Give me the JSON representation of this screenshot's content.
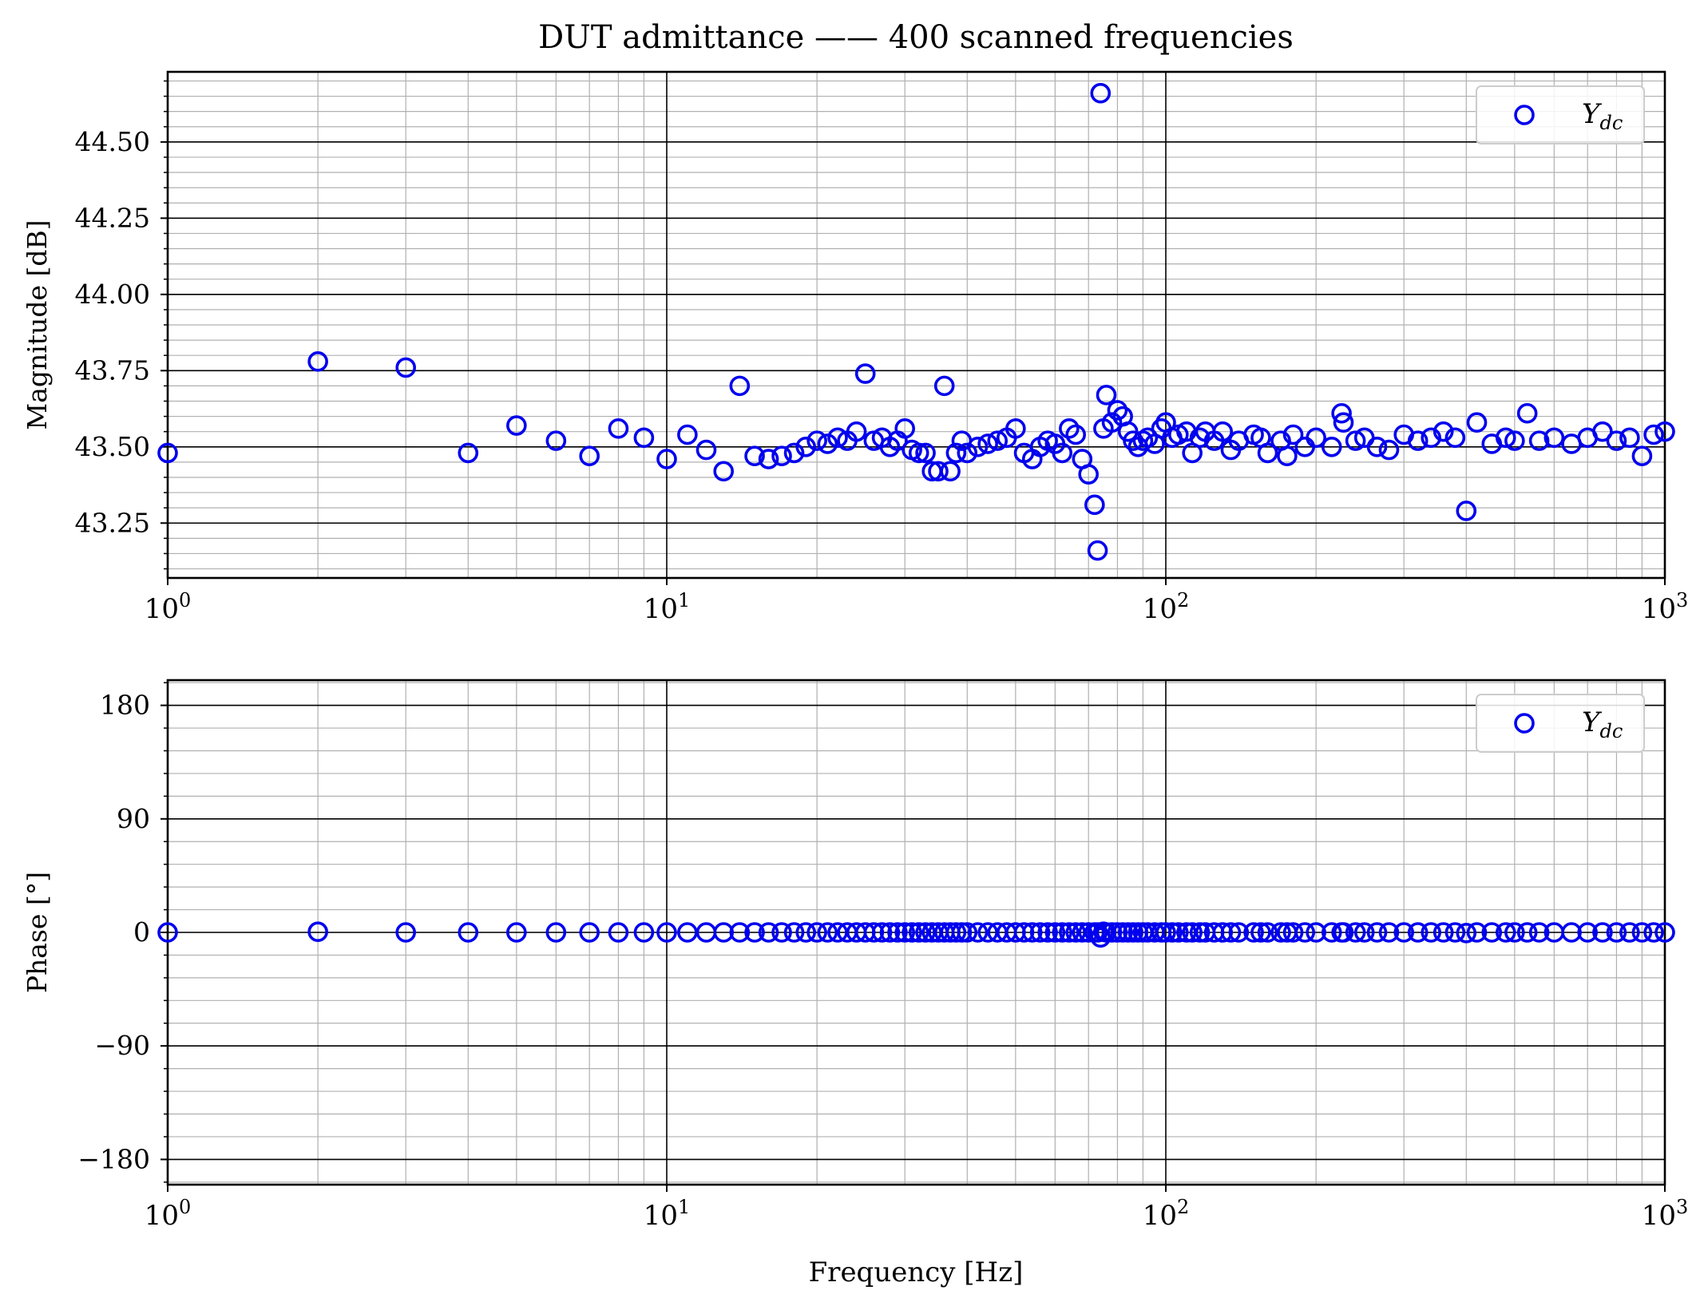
{
  "figure": {
    "title": "DUT admittance —— 400 scanned frequencies",
    "xlabel": "Frequency [Hz]"
  },
  "chart_data": [
    {
      "type": "scatter",
      "panel": "magnitude",
      "ylabel": "Magnitude [dB]",
      "xscale": "log",
      "xlim": [
        1,
        1000
      ],
      "ylim": [
        43.07,
        44.73
      ],
      "x_ticks": [
        {
          "base": "10",
          "exp": "0"
        },
        {
          "base": "10",
          "exp": "1"
        },
        {
          "base": "10",
          "exp": "2"
        },
        {
          "base": "10",
          "exp": "3"
        }
      ],
      "y_ticks": [
        "43.25",
        "43.50",
        "43.75",
        "44.00",
        "44.25",
        "44.50"
      ],
      "y_tick_values": [
        43.25,
        43.5,
        43.75,
        44.0,
        44.25,
        44.5
      ],
      "y_minor_step": 0.05,
      "grid": "major and minor",
      "legend": {
        "position": "top-right",
        "label_main": "Y",
        "label_sub": "dc"
      },
      "marker": {
        "shape": "open-circle",
        "color": "#0000ee"
      },
      "series": [
        {
          "x": [
            1,
            2,
            3,
            4,
            5,
            6,
            7,
            8,
            9,
            10,
            11,
            12,
            13,
            14,
            15,
            16,
            17,
            18,
            19,
            20,
            21,
            22,
            23,
            24,
            25,
            26,
            27,
            28,
            29,
            30,
            31,
            32,
            33,
            34,
            35,
            36,
            37,
            38,
            39,
            40,
            42,
            44,
            46,
            48,
            50,
            52,
            54,
            56,
            58,
            60,
            62,
            64,
            66,
            68,
            70,
            72,
            73,
            74,
            75,
            76,
            78,
            80,
            82,
            84,
            86,
            88,
            90,
            92,
            95,
            98,
            100,
            103,
            106,
            110,
            113,
            117,
            120,
            125,
            130,
            135,
            140,
            150,
            155,
            160,
            170,
            175,
            180,
            190,
            200,
            215,
            225,
            227,
            240,
            250,
            265,
            280,
            300,
            320,
            340,
            360,
            380,
            400,
            420,
            450,
            480,
            500,
            530,
            560,
            600,
            650,
            700,
            750,
            800,
            850,
            900,
            950,
            1000
          ],
          "y": [
            43.48,
            43.78,
            43.76,
            43.48,
            43.57,
            43.52,
            43.47,
            43.56,
            43.53,
            43.46,
            43.54,
            43.49,
            43.42,
            43.7,
            43.47,
            43.46,
            43.47,
            43.48,
            43.5,
            43.52,
            43.51,
            43.53,
            43.52,
            43.55,
            43.74,
            43.52,
            43.53,
            43.5,
            43.52,
            43.56,
            43.49,
            43.48,
            43.48,
            43.42,
            43.42,
            43.7,
            43.42,
            43.48,
            43.52,
            43.48,
            43.5,
            43.51,
            43.52,
            43.53,
            43.56,
            43.48,
            43.46,
            43.5,
            43.52,
            43.51,
            43.48,
            43.56,
            43.54,
            43.46,
            43.41,
            43.31,
            43.16,
            44.66,
            43.56,
            43.67,
            43.58,
            43.62,
            43.6,
            43.55,
            43.52,
            43.5,
            43.52,
            43.53,
            43.51,
            43.56,
            43.58,
            43.53,
            43.54,
            43.55,
            43.48,
            43.53,
            43.55,
            43.52,
            43.55,
            43.49,
            43.52,
            43.54,
            43.53,
            43.48,
            43.52,
            43.47,
            43.54,
            43.5,
            43.53,
            43.5,
            43.61,
            43.58,
            43.52,
            43.53,
            43.5,
            43.49,
            43.54,
            43.52,
            43.53,
            43.55,
            43.53,
            43.29,
            43.58,
            43.51,
            43.53,
            43.52,
            43.61,
            43.52,
            43.53,
            43.51,
            43.53,
            43.55,
            43.52,
            43.53,
            43.47,
            43.54,
            43.55
          ]
        }
      ]
    },
    {
      "type": "scatter",
      "panel": "phase",
      "ylabel": "Phase [°]",
      "xscale": "log",
      "xlim": [
        1,
        1000
      ],
      "ylim": [
        -200,
        200
      ],
      "x_ticks": [
        {
          "base": "10",
          "exp": "0"
        },
        {
          "base": "10",
          "exp": "1"
        },
        {
          "base": "10",
          "exp": "2"
        },
        {
          "base": "10",
          "exp": "3"
        }
      ],
      "y_ticks": [
        "−180",
        "−90",
        "0",
        "90",
        "180"
      ],
      "y_tick_values": [
        -180,
        -90,
        0,
        90,
        180
      ],
      "y_minor_step": 18,
      "grid": "major and minor",
      "legend": {
        "position": "top-right",
        "label_main": "Y",
        "label_sub": "dc"
      },
      "marker": {
        "shape": "open-circle",
        "color": "#0000ee"
      },
      "series": [
        {
          "x": [
            1,
            2,
            3,
            4,
            5,
            6,
            7,
            8,
            9,
            10,
            11,
            12,
            13,
            14,
            15,
            16,
            17,
            18,
            19,
            20,
            21,
            22,
            23,
            24,
            25,
            26,
            27,
            28,
            29,
            30,
            31,
            32,
            33,
            34,
            35,
            36,
            37,
            38,
            39,
            40,
            42,
            44,
            46,
            48,
            50,
            52,
            54,
            56,
            58,
            60,
            62,
            64,
            66,
            68,
            70,
            72,
            73,
            74,
            75,
            76,
            78,
            80,
            82,
            84,
            86,
            88,
            90,
            92,
            95,
            98,
            100,
            103,
            106,
            110,
            113,
            117,
            120,
            125,
            130,
            135,
            140,
            150,
            155,
            160,
            170,
            175,
            180,
            190,
            200,
            215,
            225,
            227,
            240,
            250,
            265,
            280,
            300,
            320,
            340,
            360,
            380,
            400,
            420,
            450,
            480,
            500,
            530,
            560,
            600,
            650,
            700,
            750,
            800,
            850,
            900,
            950,
            1000
          ],
          "y": [
            0,
            0.5,
            0,
            0,
            0,
            0,
            0,
            0,
            0,
            0,
            0,
            0,
            0,
            0,
            0,
            0,
            0,
            0,
            0,
            0,
            0,
            0,
            0,
            0,
            0,
            0,
            0,
            0,
            0,
            0,
            0,
            0,
            0,
            0,
            0,
            0,
            0,
            0,
            0,
            0,
            0,
            0,
            0,
            0,
            0,
            0,
            0,
            0,
            0,
            0,
            0,
            0,
            0,
            0,
            0,
            0,
            0,
            -4,
            0.5,
            0,
            0,
            0,
            0,
            0,
            0,
            0,
            0,
            0,
            0,
            0,
            0,
            0,
            0,
            0,
            0,
            0,
            0,
            0,
            0,
            0,
            0,
            0,
            0,
            0,
            0,
            0,
            0,
            0,
            0,
            0,
            0,
            0,
            0,
            0,
            0,
            0,
            0,
            0,
            0,
            0,
            0,
            -0.5,
            0,
            0,
            0,
            0,
            0,
            0,
            0,
            0,
            0,
            0,
            0,
            0,
            0,
            0,
            0
          ]
        }
      ]
    }
  ]
}
